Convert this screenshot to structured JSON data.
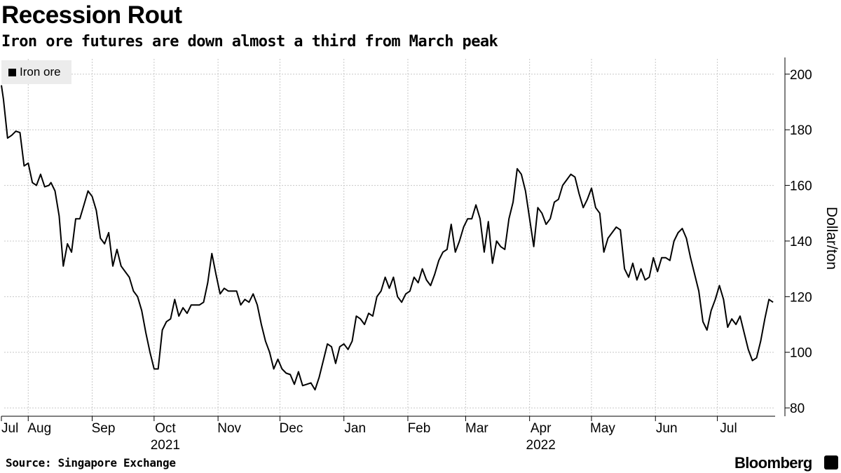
{
  "header": {
    "title": "Recession Rout",
    "subtitle": "Iron ore futures are down almost a third from March peak"
  },
  "legend": {
    "label": "Iron ore",
    "color": "#000000"
  },
  "footer": {
    "source": "Source: Singapore Exchange",
    "brand": "Bloomberg"
  },
  "chart_data": {
    "type": "line",
    "title": "Recession Rout",
    "subtitle": "Iron ore futures are down almost a third from March peak",
    "ylabel": "Dollar/ton",
    "xlabel": "",
    "ylim": [
      77,
      206
    ],
    "yticks": [
      80,
      100,
      120,
      140,
      160,
      180,
      200
    ],
    "grid": true,
    "legend_position": "top-left",
    "x_start": "2021-07-19",
    "x_end": "2022-07-29",
    "x_tick_labels": [
      {
        "label": "Jul",
        "date": "2021-07-19"
      },
      {
        "label": "Aug",
        "date": "2021-08-01"
      },
      {
        "label": "Sep",
        "date": "2021-09-01"
      },
      {
        "label": "Oct",
        "date": "2021-10-01"
      },
      {
        "label": "Nov",
        "date": "2021-11-01"
      },
      {
        "label": "Dec",
        "date": "2021-12-01"
      },
      {
        "label": "Jan",
        "date": "2022-01-01"
      },
      {
        "label": "Feb",
        "date": "2022-02-01"
      },
      {
        "label": "Mar",
        "date": "2022-03-01"
      },
      {
        "label": "Apr",
        "date": "2022-04-01"
      },
      {
        "label": "May",
        "date": "2022-05-01"
      },
      {
        "label": "Jun",
        "date": "2022-06-01"
      },
      {
        "label": "Jul",
        "date": "2022-07-01"
      }
    ],
    "year_labels": [
      {
        "label": "2021",
        "date": "2021-10-01"
      },
      {
        "label": "2022",
        "date": "2022-04-01"
      }
    ],
    "series": [
      {
        "name": "Iron ore",
        "color": "#000000",
        "points": [
          [
            "2021-07-19",
            196
          ],
          [
            "2021-07-20",
            191
          ],
          [
            "2021-07-22",
            177
          ],
          [
            "2021-07-24",
            178
          ],
          [
            "2021-07-26",
            179.5
          ],
          [
            "2021-07-28",
            179
          ],
          [
            "2021-07-30",
            167
          ],
          [
            "2021-08-01",
            168
          ],
          [
            "2021-08-03",
            161
          ],
          [
            "2021-08-05",
            160
          ],
          [
            "2021-08-07",
            164
          ],
          [
            "2021-08-09",
            159.5
          ],
          [
            "2021-08-11",
            160
          ],
          [
            "2021-08-12",
            161
          ],
          [
            "2021-08-14",
            158
          ],
          [
            "2021-08-16",
            149
          ],
          [
            "2021-08-18",
            131
          ],
          [
            "2021-08-20",
            139
          ],
          [
            "2021-08-22",
            136
          ],
          [
            "2021-08-24",
            148
          ],
          [
            "2021-08-26",
            148
          ],
          [
            "2021-08-28",
            153
          ],
          [
            "2021-08-30",
            158
          ],
          [
            "2021-09-01",
            156
          ],
          [
            "2021-09-03",
            151
          ],
          [
            "2021-09-05",
            141
          ],
          [
            "2021-09-07",
            139
          ],
          [
            "2021-09-09",
            143
          ],
          [
            "2021-09-11",
            131
          ],
          [
            "2021-09-13",
            137
          ],
          [
            "2021-09-15",
            131
          ],
          [
            "2021-09-17",
            129
          ],
          [
            "2021-09-19",
            127
          ],
          [
            "2021-09-21",
            122
          ],
          [
            "2021-09-23",
            120
          ],
          [
            "2021-09-25",
            115
          ],
          [
            "2021-09-27",
            107
          ],
          [
            "2021-09-29",
            100
          ],
          [
            "2021-10-01",
            94
          ],
          [
            "2021-10-03",
            94
          ],
          [
            "2021-10-05",
            108
          ],
          [
            "2021-10-07",
            111
          ],
          [
            "2021-10-09",
            112
          ],
          [
            "2021-10-11",
            119
          ],
          [
            "2021-10-13",
            113
          ],
          [
            "2021-10-15",
            116
          ],
          [
            "2021-10-17",
            114
          ],
          [
            "2021-10-19",
            117
          ],
          [
            "2021-10-21",
            117
          ],
          [
            "2021-10-23",
            117
          ],
          [
            "2021-10-25",
            118
          ],
          [
            "2021-10-27",
            125
          ],
          [
            "2021-10-29",
            135.5
          ],
          [
            "2021-10-31",
            128
          ],
          [
            "2021-11-02",
            121
          ],
          [
            "2021-11-04",
            123
          ],
          [
            "2021-11-06",
            122
          ],
          [
            "2021-11-08",
            122
          ],
          [
            "2021-11-10",
            122
          ],
          [
            "2021-11-12",
            117
          ],
          [
            "2021-11-14",
            119
          ],
          [
            "2021-11-16",
            118
          ],
          [
            "2021-11-18",
            121
          ],
          [
            "2021-11-20",
            117
          ],
          [
            "2021-11-22",
            110
          ],
          [
            "2021-11-24",
            104
          ],
          [
            "2021-11-26",
            100
          ],
          [
            "2021-11-28",
            94
          ],
          [
            "2021-11-30",
            97.5
          ],
          [
            "2021-12-02",
            94
          ],
          [
            "2021-12-04",
            92.5
          ],
          [
            "2021-12-06",
            92
          ],
          [
            "2021-12-08",
            88.5
          ],
          [
            "2021-12-10",
            93
          ],
          [
            "2021-12-12",
            88
          ],
          [
            "2021-12-14",
            88.5
          ],
          [
            "2021-12-16",
            89
          ],
          [
            "2021-12-18",
            86.5
          ],
          [
            "2021-12-20",
            91
          ],
          [
            "2021-12-22",
            97
          ],
          [
            "2021-12-24",
            103
          ],
          [
            "2021-12-26",
            102
          ],
          [
            "2021-12-28",
            96
          ],
          [
            "2021-12-30",
            102
          ],
          [
            "2022-01-01",
            103
          ],
          [
            "2022-01-03",
            101
          ],
          [
            "2022-01-05",
            104
          ],
          [
            "2022-01-07",
            113
          ],
          [
            "2022-01-09",
            112
          ],
          [
            "2022-01-11",
            110
          ],
          [
            "2022-01-13",
            114
          ],
          [
            "2022-01-15",
            113
          ],
          [
            "2022-01-17",
            120
          ],
          [
            "2022-01-19",
            122
          ],
          [
            "2022-01-21",
            127
          ],
          [
            "2022-01-23",
            123
          ],
          [
            "2022-01-25",
            127
          ],
          [
            "2022-01-27",
            120
          ],
          [
            "2022-01-29",
            118
          ],
          [
            "2022-01-31",
            121
          ],
          [
            "2022-02-02",
            122
          ],
          [
            "2022-02-04",
            127
          ],
          [
            "2022-02-06",
            125
          ],
          [
            "2022-02-08",
            130
          ],
          [
            "2022-02-10",
            126
          ],
          [
            "2022-02-12",
            124
          ],
          [
            "2022-02-14",
            128
          ],
          [
            "2022-02-16",
            133
          ],
          [
            "2022-02-18",
            136
          ],
          [
            "2022-02-20",
            137
          ],
          [
            "2022-02-22",
            146
          ],
          [
            "2022-02-24",
            136
          ],
          [
            "2022-02-26",
            140
          ],
          [
            "2022-02-28",
            145
          ],
          [
            "2022-03-02",
            148
          ],
          [
            "2022-03-04",
            148
          ],
          [
            "2022-03-06",
            153
          ],
          [
            "2022-03-08",
            148
          ],
          [
            "2022-03-10",
            136
          ],
          [
            "2022-03-12",
            147
          ],
          [
            "2022-03-14",
            132
          ],
          [
            "2022-03-16",
            140
          ],
          [
            "2022-03-18",
            138
          ],
          [
            "2022-03-20",
            137
          ],
          [
            "2022-03-22",
            148
          ],
          [
            "2022-03-24",
            154
          ],
          [
            "2022-03-26",
            166
          ],
          [
            "2022-03-28",
            164
          ],
          [
            "2022-03-30",
            158
          ],
          [
            "2022-04-01",
            148
          ],
          [
            "2022-04-03",
            138
          ],
          [
            "2022-04-05",
            152
          ],
          [
            "2022-04-07",
            150
          ],
          [
            "2022-04-09",
            146
          ],
          [
            "2022-04-11",
            148
          ],
          [
            "2022-04-13",
            154
          ],
          [
            "2022-04-15",
            155
          ],
          [
            "2022-04-17",
            160
          ],
          [
            "2022-04-19",
            162
          ],
          [
            "2022-04-21",
            164
          ],
          [
            "2022-04-23",
            163
          ],
          [
            "2022-04-25",
            157
          ],
          [
            "2022-04-27",
            152
          ],
          [
            "2022-04-29",
            155
          ],
          [
            "2022-05-01",
            159
          ],
          [
            "2022-05-03",
            152
          ],
          [
            "2022-05-05",
            150
          ],
          [
            "2022-05-07",
            136
          ],
          [
            "2022-05-09",
            141
          ],
          [
            "2022-05-11",
            143
          ],
          [
            "2022-05-13",
            145
          ],
          [
            "2022-05-15",
            144
          ],
          [
            "2022-05-17",
            130
          ],
          [
            "2022-05-19",
            127
          ],
          [
            "2022-05-21",
            132
          ],
          [
            "2022-05-23",
            126
          ],
          [
            "2022-05-25",
            130
          ],
          [
            "2022-05-27",
            126
          ],
          [
            "2022-05-29",
            127
          ],
          [
            "2022-05-31",
            134
          ],
          [
            "2022-06-02",
            129
          ],
          [
            "2022-06-04",
            134
          ],
          [
            "2022-06-06",
            134
          ],
          [
            "2022-06-08",
            133
          ],
          [
            "2022-06-10",
            140
          ],
          [
            "2022-06-12",
            143
          ],
          [
            "2022-06-14",
            144.5
          ],
          [
            "2022-06-16",
            141
          ],
          [
            "2022-06-18",
            134
          ],
          [
            "2022-06-20",
            128
          ],
          [
            "2022-06-22",
            122
          ],
          [
            "2022-06-24",
            111
          ],
          [
            "2022-06-26",
            108
          ],
          [
            "2022-06-28",
            115
          ],
          [
            "2022-06-30",
            119
          ],
          [
            "2022-07-02",
            124
          ],
          [
            "2022-07-04",
            119
          ],
          [
            "2022-07-06",
            109
          ],
          [
            "2022-07-08",
            112
          ],
          [
            "2022-07-10",
            110
          ],
          [
            "2022-07-12",
            113
          ],
          [
            "2022-07-14",
            107
          ],
          [
            "2022-07-16",
            101
          ],
          [
            "2022-07-18",
            97
          ],
          [
            "2022-07-20",
            98
          ],
          [
            "2022-07-22",
            104
          ],
          [
            "2022-07-24",
            112
          ],
          [
            "2022-07-26",
            119
          ],
          [
            "2022-07-28",
            118
          ]
        ]
      }
    ]
  }
}
